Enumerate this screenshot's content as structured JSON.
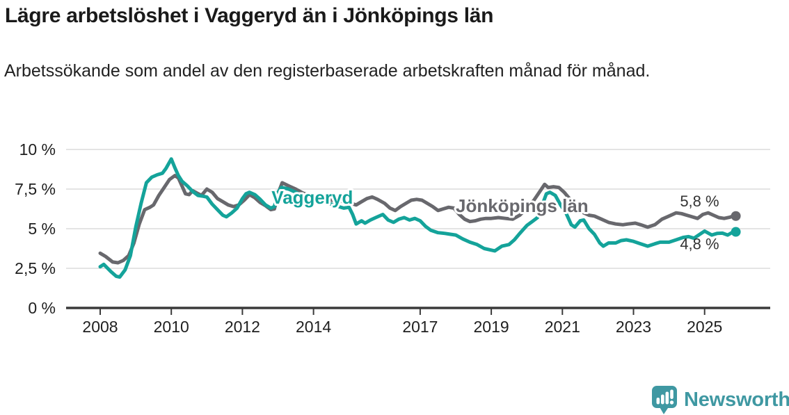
{
  "header": {
    "title": "Lägre arbetslöshet i Vaggeryd än i Jönköpings län",
    "subtitle": "Arbetssökande som andel av den registerbaserade arbetskraften månad för månad."
  },
  "chart_data": {
    "type": "line",
    "title": "Lägre arbetslöshet i Vaggeryd än i Jönköpings län",
    "subtitle": "Arbetssökande som andel av den registerbaserade arbetskraften månad för månad.",
    "unit": "%",
    "grid": true,
    "axis_color": "#3a3a3a",
    "grid_color": "#dcdcdc",
    "tick_label_color": "#1f1f1f",
    "end_label_color": "#333333",
    "x_axis": {
      "range": [
        2008,
        2025.9
      ],
      "ticks": [
        {
          "t": 2008,
          "label": "2008"
        },
        {
          "t": 2010,
          "label": "2010"
        },
        {
          "t": 2012,
          "label": "2012"
        },
        {
          "t": 2014,
          "label": "2014"
        },
        {
          "t": 2017,
          "label": "2017"
        },
        {
          "t": 2019,
          "label": "2019"
        },
        {
          "t": 2021,
          "label": "2021"
        },
        {
          "t": 2023,
          "label": "2023"
        },
        {
          "t": 2025,
          "label": "2025"
        }
      ]
    },
    "y_axis": {
      "range": [
        0,
        10
      ],
      "ticks": [
        {
          "v": 0,
          "label": "0 %"
        },
        {
          "v": 2.5,
          "label": "2,5 %"
        },
        {
          "v": 5,
          "label": "5 %"
        },
        {
          "v": 7.5,
          "label": "7,5 %"
        },
        {
          "v": 10,
          "label": "10 %"
        }
      ]
    },
    "series": [
      {
        "name": "Vaggeryd",
        "slug": "vaggeryd",
        "color": "#14a39a",
        "end_label": "4,8 %",
        "end_value": 4.8,
        "end_label_side": "below",
        "inline_label": {
          "text": "Vaggeryd",
          "t": 2012.82,
          "v": 6.58
        },
        "points": [
          [
            2008.0,
            2.6
          ],
          [
            2008.1,
            2.75
          ],
          [
            2008.3,
            2.3
          ],
          [
            2008.45,
            2.0
          ],
          [
            2008.55,
            1.95
          ],
          [
            2008.7,
            2.4
          ],
          [
            2008.85,
            3.3
          ],
          [
            2009.0,
            5.1
          ],
          [
            2009.15,
            6.6
          ],
          [
            2009.3,
            7.9
          ],
          [
            2009.45,
            8.25
          ],
          [
            2009.6,
            8.4
          ],
          [
            2009.75,
            8.5
          ],
          [
            2009.85,
            8.8
          ],
          [
            2010.0,
            9.4
          ],
          [
            2010.1,
            8.85
          ],
          [
            2010.2,
            8.35
          ],
          [
            2010.3,
            8.0
          ],
          [
            2010.45,
            7.7
          ],
          [
            2010.6,
            7.35
          ],
          [
            2010.75,
            7.1
          ],
          [
            2010.9,
            7.05
          ],
          [
            2011.0,
            7.0
          ],
          [
            2011.15,
            6.55
          ],
          [
            2011.3,
            6.2
          ],
          [
            2011.45,
            5.85
          ],
          [
            2011.55,
            5.75
          ],
          [
            2011.7,
            6.0
          ],
          [
            2011.85,
            6.3
          ],
          [
            2012.0,
            6.9
          ],
          [
            2012.1,
            7.2
          ],
          [
            2012.2,
            7.3
          ],
          [
            2012.35,
            7.15
          ],
          [
            2012.5,
            6.85
          ],
          [
            2012.65,
            6.5
          ],
          [
            2012.8,
            6.3
          ],
          [
            2012.9,
            6.4
          ],
          [
            2013.0,
            7.3
          ],
          [
            2013.1,
            7.6
          ],
          [
            2013.3,
            7.5
          ],
          [
            2013.5,
            7.3
          ],
          [
            2013.7,
            7.05
          ],
          [
            2013.9,
            6.9
          ],
          [
            2014.1,
            6.85
          ],
          [
            2014.3,
            6.7
          ],
          [
            2014.5,
            6.55
          ],
          [
            2014.7,
            6.4
          ],
          [
            2014.85,
            6.3
          ],
          [
            2015.0,
            6.35
          ],
          [
            2015.1,
            5.9
          ],
          [
            2015.2,
            5.3
          ],
          [
            2015.35,
            5.5
          ],
          [
            2015.45,
            5.35
          ],
          [
            2015.6,
            5.55
          ],
          [
            2015.75,
            5.7
          ],
          [
            2015.95,
            5.9
          ],
          [
            2016.1,
            5.55
          ],
          [
            2016.25,
            5.4
          ],
          [
            2016.4,
            5.6
          ],
          [
            2016.55,
            5.7
          ],
          [
            2016.7,
            5.55
          ],
          [
            2016.85,
            5.65
          ],
          [
            2017.0,
            5.5
          ],
          [
            2017.15,
            5.15
          ],
          [
            2017.3,
            4.9
          ],
          [
            2017.5,
            4.75
          ],
          [
            2017.7,
            4.7
          ],
          [
            2017.85,
            4.65
          ],
          [
            2018.0,
            4.6
          ],
          [
            2018.2,
            4.35
          ],
          [
            2018.4,
            4.15
          ],
          [
            2018.6,
            4.0
          ],
          [
            2018.8,
            3.75
          ],
          [
            2019.0,
            3.65
          ],
          [
            2019.1,
            3.6
          ],
          [
            2019.3,
            3.9
          ],
          [
            2019.5,
            4.0
          ],
          [
            2019.65,
            4.3
          ],
          [
            2019.8,
            4.7
          ],
          [
            2020.0,
            5.2
          ],
          [
            2020.15,
            5.45
          ],
          [
            2020.3,
            5.7
          ],
          [
            2020.45,
            6.6
          ],
          [
            2020.55,
            7.2
          ],
          [
            2020.65,
            7.3
          ],
          [
            2020.8,
            7.1
          ],
          [
            2020.95,
            6.5
          ],
          [
            2021.1,
            6.0
          ],
          [
            2021.25,
            5.25
          ],
          [
            2021.35,
            5.1
          ],
          [
            2021.5,
            5.5
          ],
          [
            2021.6,
            5.55
          ],
          [
            2021.75,
            5.0
          ],
          [
            2021.9,
            4.65
          ],
          [
            2022.05,
            4.1
          ],
          [
            2022.15,
            3.9
          ],
          [
            2022.3,
            4.1
          ],
          [
            2022.5,
            4.1
          ],
          [
            2022.65,
            4.25
          ],
          [
            2022.8,
            4.3
          ],
          [
            2023.0,
            4.2
          ],
          [
            2023.2,
            4.05
          ],
          [
            2023.4,
            3.9
          ],
          [
            2023.6,
            4.05
          ],
          [
            2023.75,
            4.15
          ],
          [
            2024.0,
            4.15
          ],
          [
            2024.2,
            4.3
          ],
          [
            2024.4,
            4.45
          ],
          [
            2024.55,
            4.5
          ],
          [
            2024.7,
            4.4
          ],
          [
            2024.9,
            4.7
          ],
          [
            2025.0,
            4.85
          ],
          [
            2025.2,
            4.6
          ],
          [
            2025.35,
            4.7
          ],
          [
            2025.5,
            4.72
          ],
          [
            2025.65,
            4.6
          ],
          [
            2025.8,
            4.8
          ]
        ]
      },
      {
        "name": "Jönköpings län",
        "slug": "jonkopings-lan",
        "color": "#68686d",
        "end_label": "5,8 %",
        "end_value": 5.8,
        "end_label_side": "above",
        "inline_label": {
          "text": "Jönköpings län",
          "t": 2018.0,
          "v": 6.05
        },
        "points": [
          [
            2008.0,
            3.45
          ],
          [
            2008.15,
            3.25
          ],
          [
            2008.35,
            2.9
          ],
          [
            2008.5,
            2.85
          ],
          [
            2008.65,
            3.0
          ],
          [
            2008.8,
            3.3
          ],
          [
            2008.95,
            4.1
          ],
          [
            2009.1,
            5.3
          ],
          [
            2009.25,
            6.2
          ],
          [
            2009.4,
            6.35
          ],
          [
            2009.5,
            6.5
          ],
          [
            2009.65,
            7.1
          ],
          [
            2009.8,
            7.6
          ],
          [
            2009.95,
            8.1
          ],
          [
            2010.1,
            8.35
          ],
          [
            2010.2,
            8.2
          ],
          [
            2010.3,
            7.7
          ],
          [
            2010.4,
            7.2
          ],
          [
            2010.5,
            7.15
          ],
          [
            2010.6,
            7.4
          ],
          [
            2010.72,
            7.25
          ],
          [
            2010.85,
            7.1
          ],
          [
            2011.0,
            7.5
          ],
          [
            2011.15,
            7.3
          ],
          [
            2011.3,
            6.9
          ],
          [
            2011.45,
            6.7
          ],
          [
            2011.6,
            6.5
          ],
          [
            2011.75,
            6.4
          ],
          [
            2011.9,
            6.5
          ],
          [
            2012.05,
            6.8
          ],
          [
            2012.2,
            7.15
          ],
          [
            2012.35,
            6.95
          ],
          [
            2012.5,
            6.65
          ],
          [
            2012.65,
            6.45
          ],
          [
            2012.8,
            6.2
          ],
          [
            2012.9,
            6.25
          ],
          [
            2013.0,
            7.2
          ],
          [
            2013.12,
            7.9
          ],
          [
            2013.3,
            7.7
          ],
          [
            2013.5,
            7.5
          ],
          [
            2013.7,
            7.25
          ],
          [
            2013.9,
            7.1
          ],
          [
            2014.1,
            7.0
          ],
          [
            2014.3,
            6.9
          ],
          [
            2014.5,
            6.8
          ],
          [
            2014.7,
            6.75
          ],
          [
            2014.9,
            6.7
          ],
          [
            2015.05,
            6.6
          ],
          [
            2015.2,
            6.5
          ],
          [
            2015.35,
            6.7
          ],
          [
            2015.5,
            6.9
          ],
          [
            2015.65,
            7.0
          ],
          [
            2015.8,
            6.85
          ],
          [
            2016.0,
            6.6
          ],
          [
            2016.15,
            6.3
          ],
          [
            2016.3,
            6.15
          ],
          [
            2016.45,
            6.4
          ],
          [
            2016.6,
            6.6
          ],
          [
            2016.75,
            6.8
          ],
          [
            2016.9,
            6.85
          ],
          [
            2017.05,
            6.8
          ],
          [
            2017.2,
            6.6
          ],
          [
            2017.35,
            6.4
          ],
          [
            2017.5,
            6.15
          ],
          [
            2017.65,
            6.25
          ],
          [
            2017.8,
            6.35
          ],
          [
            2017.95,
            6.3
          ],
          [
            2018.1,
            5.9
          ],
          [
            2018.25,
            5.6
          ],
          [
            2018.4,
            5.45
          ],
          [
            2018.55,
            5.5
          ],
          [
            2018.7,
            5.6
          ],
          [
            2018.85,
            5.65
          ],
          [
            2019.0,
            5.65
          ],
          [
            2019.2,
            5.7
          ],
          [
            2019.4,
            5.65
          ],
          [
            2019.6,
            5.6
          ],
          [
            2019.8,
            5.85
          ],
          [
            2020.0,
            6.3
          ],
          [
            2020.2,
            6.8
          ],
          [
            2020.35,
            7.3
          ],
          [
            2020.5,
            7.8
          ],
          [
            2020.6,
            7.6
          ],
          [
            2020.75,
            7.65
          ],
          [
            2020.9,
            7.6
          ],
          [
            2021.05,
            7.3
          ],
          [
            2021.2,
            6.9
          ],
          [
            2021.4,
            6.4
          ],
          [
            2021.6,
            6.0
          ],
          [
            2021.75,
            5.85
          ],
          [
            2021.9,
            5.8
          ],
          [
            2022.1,
            5.6
          ],
          [
            2022.3,
            5.4
          ],
          [
            2022.5,
            5.3
          ],
          [
            2022.7,
            5.25
          ],
          [
            2022.85,
            5.3
          ],
          [
            2023.05,
            5.35
          ],
          [
            2023.2,
            5.25
          ],
          [
            2023.4,
            5.1
          ],
          [
            2023.6,
            5.25
          ],
          [
            2023.8,
            5.6
          ],
          [
            2024.0,
            5.8
          ],
          [
            2024.2,
            6.0
          ],
          [
            2024.35,
            5.95
          ],
          [
            2024.5,
            5.85
          ],
          [
            2024.65,
            5.75
          ],
          [
            2024.8,
            5.65
          ],
          [
            2024.95,
            5.9
          ],
          [
            2025.1,
            6.0
          ],
          [
            2025.25,
            5.85
          ],
          [
            2025.4,
            5.7
          ],
          [
            2025.55,
            5.65
          ],
          [
            2025.7,
            5.72
          ],
          [
            2025.8,
            5.8
          ]
        ]
      }
    ]
  },
  "footer": {
    "brand": "Newsworthy",
    "brand_color": "#3f98a2",
    "logo_icon": "bar-chart-speech-bubble-icon"
  }
}
